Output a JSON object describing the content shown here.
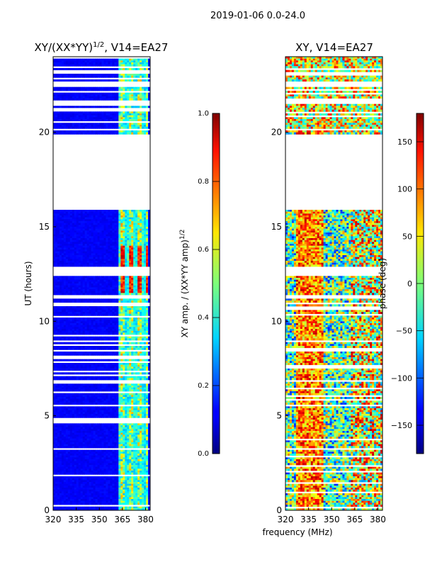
{
  "suptitle": "2019-01-06 0.0-24.0",
  "chart_data": [
    {
      "type": "heatmap",
      "title_main": "XY/(XX*YY)",
      "title_exp": "1/2",
      "title_suffix": ", V14=EA27",
      "ylabel": "UT (hours)",
      "xlabel": "",
      "xlim": [
        320,
        383
      ],
      "ylim": [
        0,
        24
      ],
      "xticks": [
        320,
        335,
        350,
        365,
        380
      ],
      "yticks": [
        0,
        5,
        10,
        15,
        20
      ],
      "colorbar": {
        "label_main": "XY amp. / (XX*YY amp)",
        "label_exp": "1/2",
        "range": [
          0.0,
          1.0
        ],
        "ticks": [
          "0.0",
          "0.2",
          "0.4",
          "0.6",
          "0.8",
          "1.0"
        ],
        "colormap": "jet"
      },
      "gap_hours": [
        [
          15.9,
          19.9
        ],
        [
          12.4,
          12.9
        ],
        [
          11.2,
          11.4
        ],
        [
          22.4,
          22.7
        ],
        [
          21.5,
          21.7
        ]
      ]
    },
    {
      "type": "heatmap",
      "title_main": "XY, V14=EA27",
      "title_exp": "",
      "title_suffix": "",
      "ylabel": "",
      "xlabel": "frequency (MHz)",
      "xlim": [
        320,
        383
      ],
      "ylim": [
        0,
        24
      ],
      "xticks": [
        320,
        335,
        350,
        365,
        380
      ],
      "yticks": [
        0,
        5,
        10,
        15,
        20
      ],
      "colorbar": {
        "label_main": "phase (deg)",
        "label_exp": "",
        "range": [
          -180,
          180
        ],
        "ticks": [
          "−150",
          "−100",
          "−50",
          "0",
          "50",
          "100",
          "150"
        ],
        "colormap": "jet"
      },
      "gap_hours": [
        [
          15.9,
          19.9
        ],
        [
          12.4,
          12.9
        ],
        [
          11.2,
          11.4
        ],
        [
          22.4,
          22.7
        ],
        [
          21.5,
          21.7
        ]
      ]
    }
  ]
}
